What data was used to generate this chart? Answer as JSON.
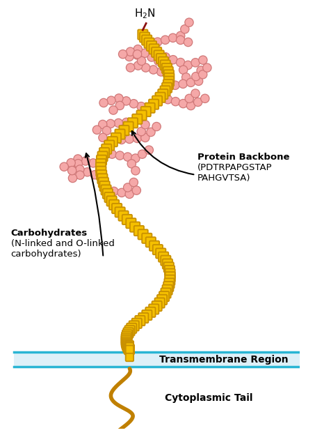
{
  "background_color": "#ffffff",
  "membrane_color": "#ddf0f8",
  "membrane_border_color": "#29b5d4",
  "backbone_color": "#F5C000",
  "backbone_edge_color": "#C89000",
  "sugar_color": "#F5A8A8",
  "sugar_edge_color": "#D07878",
  "h2n_line_color": "#8B1010",
  "cytoplasm_color": "#C08000",
  "text_color": "#000000",
  "label_backbone_line1": "Protein Backbone",
  "label_backbone_line2": "(PDTRPAPGSTAP",
  "label_backbone_line3": "PAHGVTSA)",
  "label_carbo_line1": "Carbohydrates",
  "label_carbo_line2": "(N-linked and O-linked",
  "label_carbo_line3": "carbohydrates)",
  "label_transmembrane": "Transmembrane Region",
  "label_cytoplasm": "Cytoplasmic Tail",
  "figsize": [
    4.53,
    6.24
  ],
  "dpi": 100
}
